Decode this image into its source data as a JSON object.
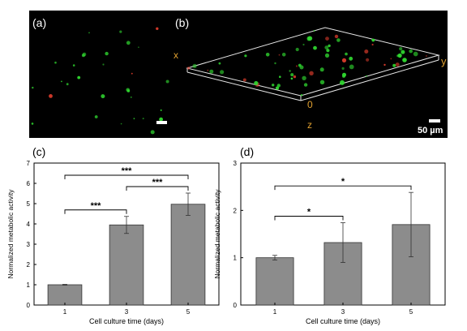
{
  "panels": {
    "a": {
      "label": "(a)"
    },
    "b": {
      "label": "(b)",
      "axis_x": "x",
      "axis_y": "y",
      "axis_z": "z",
      "origin": "0",
      "scalebar": "50 µm"
    }
  },
  "colors": {
    "cell_green": "#2fd62f",
    "cell_red": "#d63a2a",
    "axis_orange": "#e0a030",
    "bar_fill": "#8c8c8c"
  },
  "chart_data": [
    {
      "panel": "(c)",
      "type": "bar",
      "categories": [
        "1",
        "3",
        "5"
      ],
      "values": [
        1.0,
        3.95,
        4.97
      ],
      "errors": [
        0.02,
        0.42,
        0.55
      ],
      "xlabel": "Cell culture time (days)",
      "ylabel": "Normalized metabolic activity",
      "ylim": [
        0,
        7
      ],
      "yticks": [
        "0",
        "1",
        "2",
        "3",
        "4",
        "5",
        "6",
        "7"
      ],
      "significance": [
        {
          "from": "1",
          "to": "3",
          "label": "***"
        },
        {
          "from": "3",
          "to": "5",
          "label": "***"
        },
        {
          "from": "1",
          "to": "5",
          "label": "***"
        }
      ]
    },
    {
      "panel": "(d)",
      "type": "bar",
      "categories": [
        "1",
        "3",
        "5"
      ],
      "values": [
        1.0,
        1.32,
        1.7
      ],
      "errors": [
        0.05,
        0.42,
        0.68
      ],
      "xlabel": "Cell culture time (days)",
      "ylabel": "Normalized metabolic activity",
      "ylim": [
        0,
        3
      ],
      "yticks": [
        "0",
        "1",
        "2",
        "3"
      ],
      "significance": [
        {
          "from": "1",
          "to": "3",
          "label": "*"
        },
        {
          "from": "1",
          "to": "5",
          "label": "*"
        }
      ]
    }
  ]
}
